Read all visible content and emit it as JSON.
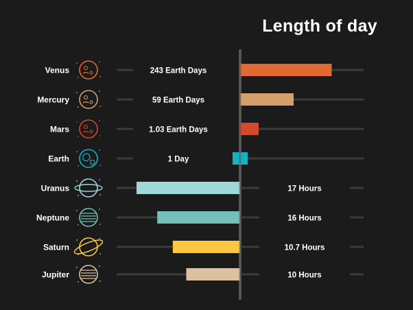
{
  "chart_data": {
    "type": "bar",
    "title": "Length of day",
    "xlabel": "",
    "ylabel": "",
    "categories": [
      "Venus",
      "Mercury",
      "Mars",
      "Earth",
      "Uranus",
      "Neptune",
      "Saturn",
      "Jupiter"
    ],
    "value_labels": [
      "243 Earth Days",
      "59 Earth Days",
      "1.03 Earth Days",
      "1 Day",
      "17 Hours",
      "16 Hours",
      "10.7 Hours",
      "10 Hours"
    ],
    "values": [
      243,
      59,
      1.03,
      1,
      17,
      16,
      10.7,
      10
    ],
    "units": [
      "Earth Days",
      "Earth Days",
      "Earth Days",
      "Day",
      "Hours",
      "Hours",
      "Hours",
      "Hours"
    ],
    "bar_lengths_relative": [
      0.89,
      0.52,
      0.18,
      0.07,
      1.0,
      0.8,
      0.65,
      0.52
    ],
    "bar_colors": [
      "#e06a32",
      "#d3a06a",
      "#d24a2b",
      "#17b3c2",
      "#9ed8d8",
      "#72c0b9",
      "#fbc843",
      "#ddc09d"
    ],
    "icon_colors": [
      "#e06a32",
      "#d3a06a",
      "#d24a2b",
      "#17b3c2",
      "#9ed8d8",
      "#72c0b9",
      "#fbc843",
      "#ddc09d"
    ],
    "icons": [
      "venus-icon",
      "mercury-icon",
      "mars-icon",
      "earth-icon",
      "uranus-icon",
      "neptune-icon",
      "saturn-icon",
      "jupiter-icon"
    ],
    "grid": false,
    "legend": "none",
    "colors": {
      "background": "#1b1b1b",
      "axis": "#555555",
      "track": "#3b3b3b",
      "text": "#ffffff"
    }
  }
}
